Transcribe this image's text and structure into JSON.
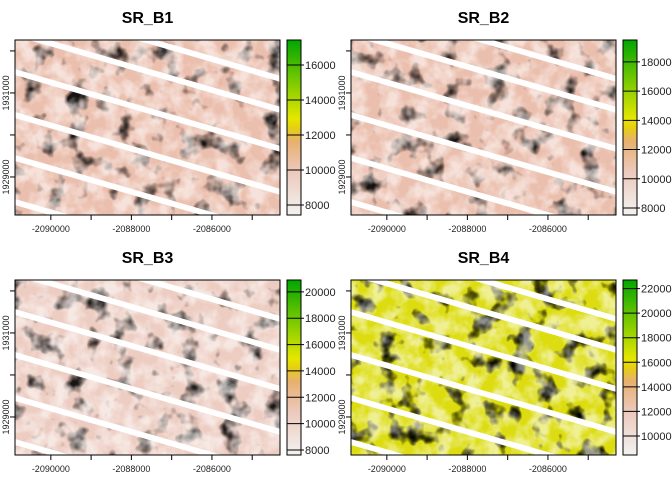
{
  "chart_data": [
    {
      "type": "heatmap",
      "title": "SR_B1",
      "x_ticks": [
        -2090000,
        -2089000,
        -2088000,
        -2087000,
        -2086000,
        -2085000
      ],
      "x_tick_labels": [
        "-2090000",
        "-2088000",
        "-2086000"
      ],
      "y_ticks": [
        1932000,
        1931000,
        1930000,
        1929000
      ],
      "y_tick_labels": [
        "1931000",
        "1929000"
      ],
      "xlim": [
        -2090890,
        -2084310
      ],
      "ylim": [
        1928095,
        1932260
      ],
      "legend": {
        "range": [
          7430,
          17430
        ],
        "ticks": [
          "16000",
          "14000",
          "12000",
          "10000",
          "8000"
        ],
        "values": [
          16000,
          14000,
          12000,
          10000,
          8000
        ]
      },
      "palette": "terrain",
      "stripe_color": "#ffffff",
      "base": "#ebbfae",
      "patch": "#e6b070"
    },
    {
      "type": "heatmap",
      "title": "SR_B2",
      "x_ticks": [
        -2090000,
        -2089000,
        -2088000,
        -2087000,
        -2086000,
        -2085000
      ],
      "x_tick_labels": [
        "-2090000",
        "-2088000",
        "-2086000"
      ],
      "y_ticks": [
        1932000,
        1931000,
        1930000,
        1929000
      ],
      "y_tick_labels": [
        "1931000",
        "1929000"
      ],
      "xlim": [
        -2090890,
        -2084310
      ],
      "ylim": [
        1928095,
        1932260
      ],
      "legend": {
        "range": [
          7520,
          19500
        ],
        "ticks": [
          "18000",
          "16000",
          "14000",
          "12000",
          "10000",
          "8000"
        ],
        "values": [
          18000,
          16000,
          14000,
          12000,
          10000,
          8000
        ]
      },
      "palette": "terrain",
      "stripe_color": "#ffffff",
      "base": "#ebbfae",
      "patch": "#e6b070"
    },
    {
      "type": "heatmap",
      "title": "SR_B3",
      "x_ticks": [
        -2090000,
        -2089000,
        -2088000,
        -2087000,
        -2086000,
        -2085000
      ],
      "x_tick_labels": [
        "-2090000",
        "-2088000",
        "-2086000"
      ],
      "y_ticks": [
        1932000,
        1931000,
        1930000,
        1929000
      ],
      "y_tick_labels": [
        "1931000",
        "1929000"
      ],
      "xlim": [
        -2090890,
        -2084310
      ],
      "ylim": [
        1928095,
        1932260
      ],
      "legend": {
        "range": [
          7620,
          20900
        ],
        "ticks": [
          "20000",
          "18000",
          "16000",
          "14000",
          "12000",
          "10000",
          "8000"
        ],
        "values": [
          20000,
          18000,
          16000,
          14000,
          12000,
          10000,
          8000
        ]
      },
      "palette": "terrain",
      "stripe_color": "#ffffff",
      "base": "#edcdc2",
      "patch": "#e8b868"
    },
    {
      "type": "heatmap",
      "title": "SR_B4",
      "x_ticks": [
        -2090000,
        -2089000,
        -2088000,
        -2087000,
        -2086000,
        -2085000
      ],
      "x_tick_labels": [
        "-2090000",
        "-2088000",
        "-2086000"
      ],
      "y_ticks": [
        1932000,
        1931000,
        1930000,
        1929000
      ],
      "y_tick_labels": [
        "1931000",
        "1929000"
      ],
      "xlim": [
        -2090890,
        -2084310
      ],
      "ylim": [
        1928095,
        1932260
      ],
      "legend": {
        "range": [
          8450,
          22700
        ],
        "ticks": [
          "22000",
          "20000",
          "18000",
          "16000",
          "14000",
          "12000",
          "10000"
        ],
        "values": [
          22000,
          20000,
          18000,
          16000,
          14000,
          12000,
          10000
        ]
      },
      "palette": "terrain",
      "stripe_color": "#ffffff",
      "base": "#dcdc10",
      "patch": "#60c020"
    }
  ]
}
